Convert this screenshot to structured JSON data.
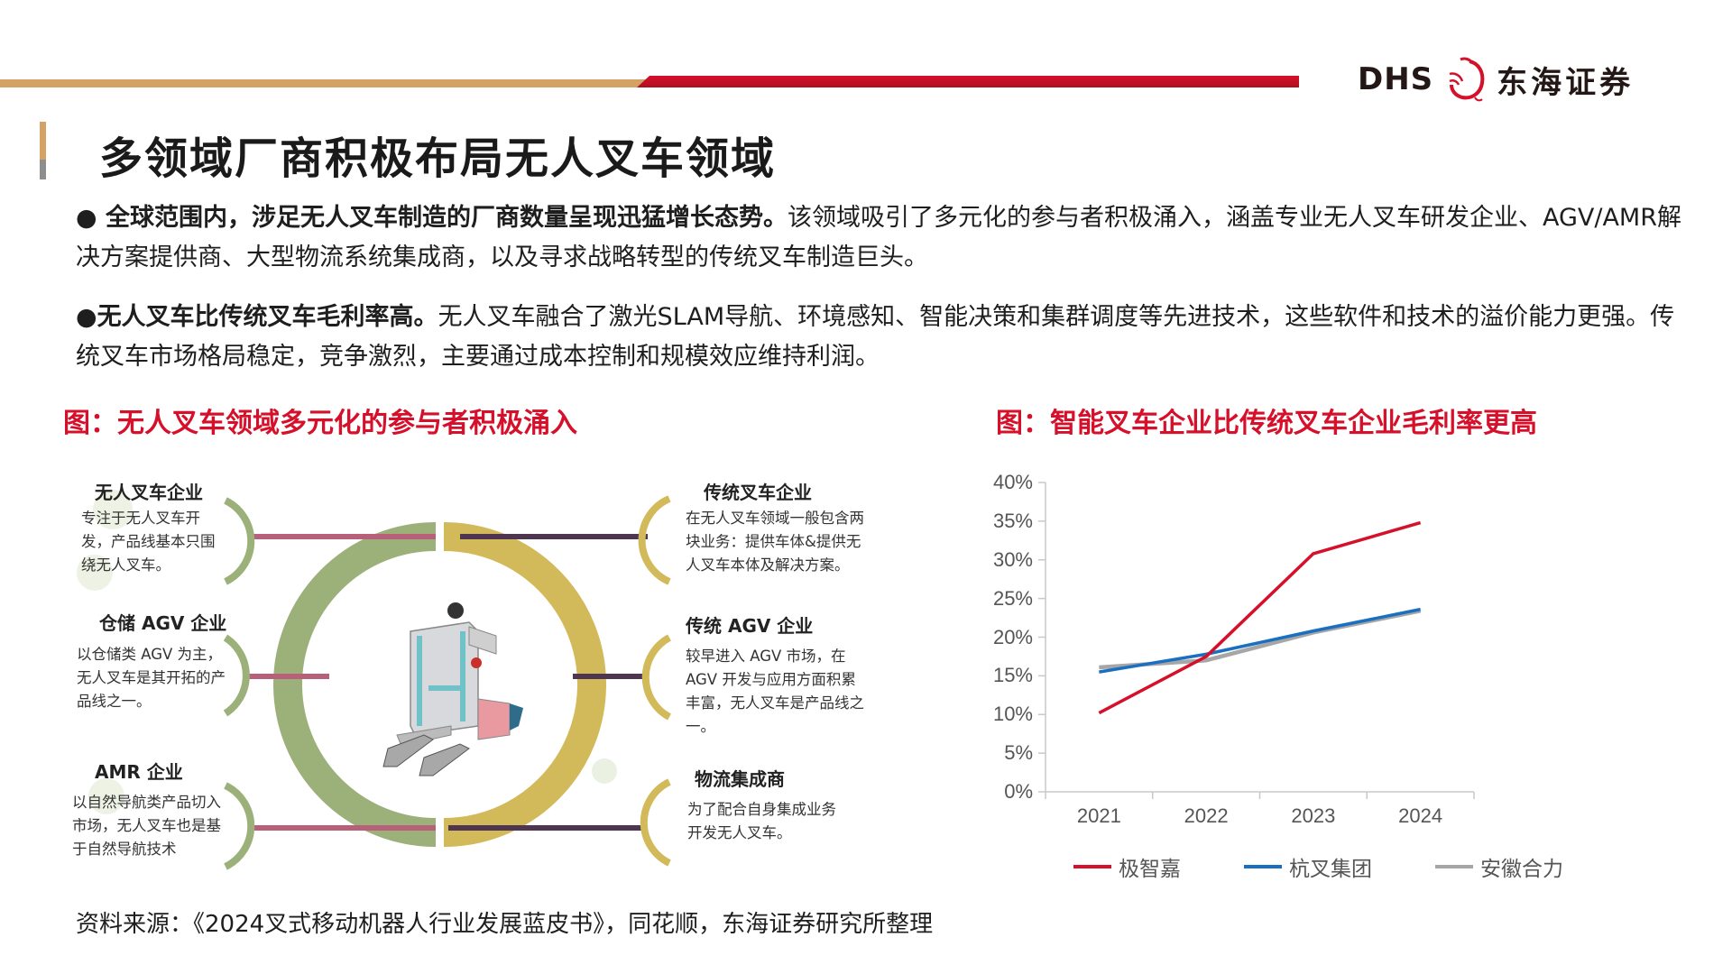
{
  "header": {
    "logo_latin": "DHS",
    "logo_cn": "东海证券",
    "colors": {
      "tan": "#d4a264",
      "red": "#d8102a"
    }
  },
  "page_title": "多领域厂商积极布局无人叉车领域",
  "bullets": [
    {
      "marker": "●",
      "bold": " 全球范围内，涉足无人叉车制造的厂商数量呈现迅猛增长态势。",
      "text": "该领域吸引了多元化的参与者积极涌入，涵盖专业无人叉车研发企业、AGV/AMR解决方案提供商、大型物流系统集成商，以及寻求战略转型的传统叉车制造巨头。"
    },
    {
      "marker": "●",
      "bold": "无人叉车比传统叉车毛利率高。",
      "text": "无人叉车融合了激光SLAM导航、环境感知、智能决策和集群调度等先进技术，这些软件和技术的溢价能力更强。传统叉车市场格局稳定，竞争激烈，主要通过成本控制和规模效应维持利润。"
    }
  ],
  "figure_left": {
    "title": "图：无人叉车领域多元化的参与者积极涌入",
    "left_items": [
      {
        "heading": "无人叉车企业",
        "text": "专注于无人叉车开发，产品线基本只围绕无人叉车。"
      },
      {
        "heading": "仓储 AGV 企业",
        "text": "以仓储类 AGV 为主，无人叉车是其开拓的产品线之一。"
      },
      {
        "heading": "AMR 企业",
        "text": "以自然导航类产品切入市场，无人叉车也是基于自然导航技术"
      }
    ],
    "right_items": [
      {
        "heading": "传统叉车企业",
        "text": "在无人叉车领域一般包含两块业务：提供车体&提供无人叉车本体及解决方案。"
      },
      {
        "heading": "传统 AGV 企业",
        "text": "较早进入 AGV 市场，在 AGV 开发与应用方面积累丰富，无人叉车是产品线之一。"
      },
      {
        "heading": "物流集成商",
        "text": "为了配合自身集成业务开发无人叉车。"
      }
    ],
    "center_image": "forklift-robot-illustration",
    "colors": {
      "green": "#9cb07a",
      "gold": "#d2b95a",
      "rose_line": "#b8607a",
      "plum_line": "#4e3550"
    }
  },
  "figure_right": {
    "title": "图：智能叉车企业比传统叉车企业毛利率更高"
  },
  "chart_data": {
    "type": "line",
    "title": "图：智能叉车企业比传统叉车企业毛利率更高",
    "categories": [
      "2021",
      "2022",
      "2023",
      "2024"
    ],
    "series": [
      {
        "name": "极智嘉",
        "color": "#d6102a",
        "values": [
          10.2,
          17.5,
          30.8,
          34.8
        ]
      },
      {
        "name": "杭叉集团",
        "color": "#1a6fc0",
        "values": [
          15.5,
          17.8,
          20.8,
          23.6
        ]
      },
      {
        "name": "安徽合力",
        "color": "#a6a6a6",
        "values": [
          16.1,
          17.0,
          20.6,
          23.4
        ]
      }
    ],
    "yticks": [
      "0%",
      "5%",
      "10%",
      "15%",
      "20%",
      "25%",
      "30%",
      "35%",
      "40%"
    ],
    "ylim": [
      0,
      40
    ],
    "xlabel": "",
    "ylabel": "",
    "grid": false,
    "legend_position": "bottom"
  },
  "source": "资料来源：《2024叉式移动机器人行业发展蓝皮书》，同花顺，东海证券研究所整理"
}
